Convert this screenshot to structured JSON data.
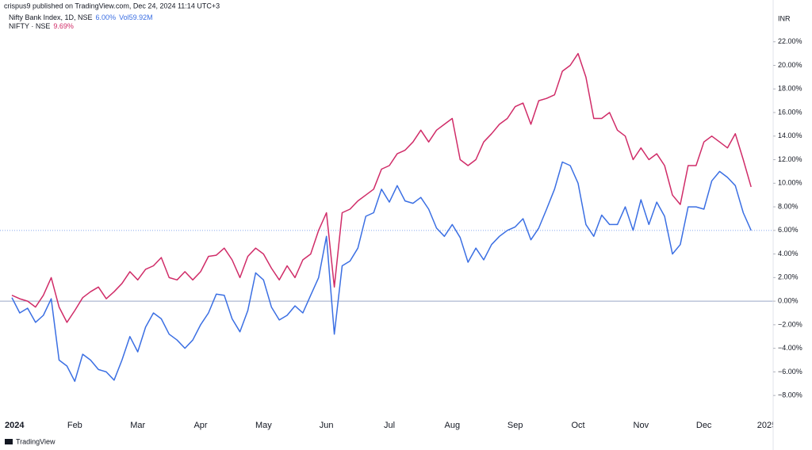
{
  "header": "crispus9 published on TradingView.com, Dec 24, 2024 11:14 UTC+3",
  "footer": "TradingView",
  "chart_data": {
    "type": "line",
    "currency": "INR",
    "categories": [
      "2024",
      null,
      null,
      null,
      null,
      null,
      null,
      null,
      "Feb",
      null,
      null,
      null,
      null,
      null,
      null,
      null,
      "Mar",
      null,
      null,
      null,
      null,
      null,
      null,
      null,
      "Apr",
      null,
      null,
      null,
      null,
      null,
      null,
      null,
      "May",
      null,
      null,
      null,
      null,
      null,
      null,
      null,
      "Jun",
      null,
      null,
      null,
      null,
      null,
      null,
      null,
      "Jul",
      null,
      null,
      null,
      null,
      null,
      null,
      null,
      "Aug",
      null,
      null,
      null,
      null,
      null,
      null,
      null,
      "Sep",
      null,
      null,
      null,
      null,
      null,
      null,
      null,
      "Oct",
      null,
      null,
      null,
      null,
      null,
      null,
      null,
      "Nov",
      null,
      null,
      null,
      null,
      null,
      null,
      null,
      "Dec",
      null,
      null,
      null,
      null,
      null,
      null,
      null,
      "2025"
    ],
    "series": [
      {
        "name": "Nifty Bank Index, 1D, NSE",
        "color": "#3b6fe3",
        "last_label": "6.00%",
        "volume_label": "Vol",
        "volume": "59.92M",
        "values": [
          0.3,
          -1.0,
          -0.6,
          -1.8,
          -1.2,
          0.2,
          -5.0,
          -5.5,
          -6.8,
          -4.5,
          -5.0,
          -5.8,
          -6.0,
          -6.7,
          -5.0,
          -3.0,
          -4.3,
          -2.2,
          -1.0,
          -1.5,
          -2.8,
          -3.3,
          -4.0,
          -3.3,
          -2.0,
          -1.0,
          0.6,
          0.5,
          -1.5,
          -2.6,
          -0.8,
          2.4,
          1.8,
          -0.5,
          -1.6,
          -1.2,
          -0.4,
          -1.0,
          0.5,
          2.0,
          5.5,
          -2.8,
          3.0,
          3.4,
          4.5,
          7.2,
          7.5,
          9.5,
          8.4,
          9.8,
          8.5,
          8.3,
          8.8,
          7.8,
          6.2,
          5.5,
          6.5,
          5.4,
          3.3,
          4.5,
          3.5,
          4.8,
          5.5,
          6.0,
          6.3,
          7.0,
          5.2,
          6.2,
          7.8,
          9.5,
          11.8,
          11.5,
          10.0,
          6.5,
          5.5,
          7.3,
          6.5,
          6.5,
          8.0,
          6.0,
          8.6,
          6.5,
          8.4,
          7.2,
          4.0,
          4.8,
          8.0,
          8.0,
          7.8,
          10.2,
          11.0,
          10.5,
          9.8,
          7.5,
          6.0,
          null,
          null
        ]
      },
      {
        "name": "NIFTY · NSE",
        "color": "#d02c68",
        "last_label": "9.69%",
        "values": [
          0.5,
          0.2,
          0.0,
          -0.5,
          0.5,
          2.0,
          -0.5,
          -1.8,
          -0.8,
          0.3,
          0.8,
          1.2,
          0.2,
          0.8,
          1.5,
          2.5,
          1.8,
          2.7,
          3.0,
          3.7,
          2.0,
          1.8,
          2.5,
          1.8,
          2.5,
          3.8,
          3.9,
          4.5,
          3.5,
          2.0,
          3.8,
          4.5,
          4.0,
          2.8,
          1.8,
          3.0,
          2.0,
          3.5,
          4.0,
          6.0,
          7.5,
          1.2,
          7.5,
          7.8,
          8.5,
          9.0,
          9.5,
          11.2,
          11.5,
          12.5,
          12.8,
          13.5,
          14.5,
          13.5,
          14.5,
          15.0,
          15.5,
          12.0,
          11.5,
          12.0,
          13.5,
          14.2,
          15.0,
          15.5,
          16.5,
          16.8,
          15.0,
          17.0,
          17.2,
          17.5,
          19.5,
          20.0,
          21.0,
          19.0,
          15.5,
          15.5,
          16.0,
          14.5,
          14.0,
          12.0,
          13.0,
          12.0,
          12.5,
          11.5,
          9.0,
          8.2,
          11.5,
          11.5,
          13.5,
          14.0,
          13.5,
          13.0,
          14.2,
          12.0,
          9.69,
          null,
          null
        ]
      }
    ],
    "ylim": [
      -9.4,
      24.2
    ],
    "yticks": [
      {
        "value": 22,
        "label": "22.00%"
      },
      {
        "value": 20,
        "label": "20.00%"
      },
      {
        "value": 18,
        "label": "18.00%"
      },
      {
        "value": 16,
        "label": "16.00%"
      },
      {
        "value": 14,
        "label": "14.00%"
      },
      {
        "value": 12,
        "label": "12.00%"
      },
      {
        "value": 10,
        "label": "10.00%"
      },
      {
        "value": 8,
        "label": "8.00%"
      },
      {
        "value": 6,
        "label": "6.00%"
      },
      {
        "value": 4,
        "label": "4.00%"
      },
      {
        "value": 2,
        "label": "2.00%"
      },
      {
        "value": 0,
        "label": "0.00%"
      },
      {
        "value": -2,
        "label": "−2.00%"
      },
      {
        "value": -4,
        "label": "−4.00%"
      },
      {
        "value": -6,
        "label": "−6.00%"
      },
      {
        "value": -8,
        "label": "−8.00%"
      }
    ],
    "baseline": 0
  }
}
